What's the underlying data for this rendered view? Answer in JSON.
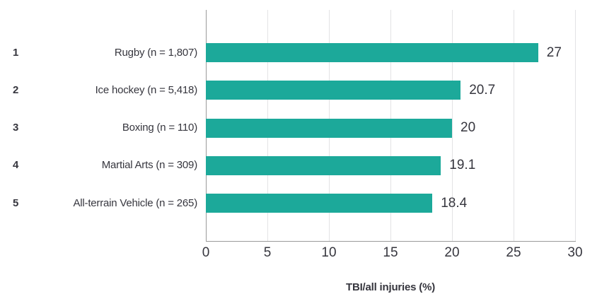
{
  "chart_data": {
    "type": "bar",
    "orientation": "horizontal",
    "title": "",
    "xlabel": "TBI/all injuries (%)",
    "ylabel": "",
    "xlim": [
      0,
      30
    ],
    "xticks": [
      0,
      5,
      10,
      15,
      20,
      25,
      30
    ],
    "grid": "vertical",
    "legend": "none",
    "colors": {
      "bar": "#1ca99a",
      "text": "#36363e",
      "gridline": "#e3e3e5",
      "axis_line": "#9a9a9a"
    },
    "rows": [
      {
        "rank": "1",
        "category": "Rugby (n = 1,807)",
        "value": 27,
        "value_label": "27"
      },
      {
        "rank": "2",
        "category": "Ice hockey (n = 5,418)",
        "value": 20.7,
        "value_label": "20.7"
      },
      {
        "rank": "3",
        "category": "Boxing (n = 110)",
        "value": 20,
        "value_label": "20"
      },
      {
        "rank": "4",
        "category": "Martial Arts (n = 309)",
        "value": 19.1,
        "value_label": "19.1"
      },
      {
        "rank": "5",
        "category": "All-terrain Vehicle (n = 265)",
        "value": 18.4,
        "value_label": "18.4"
      }
    ]
  }
}
